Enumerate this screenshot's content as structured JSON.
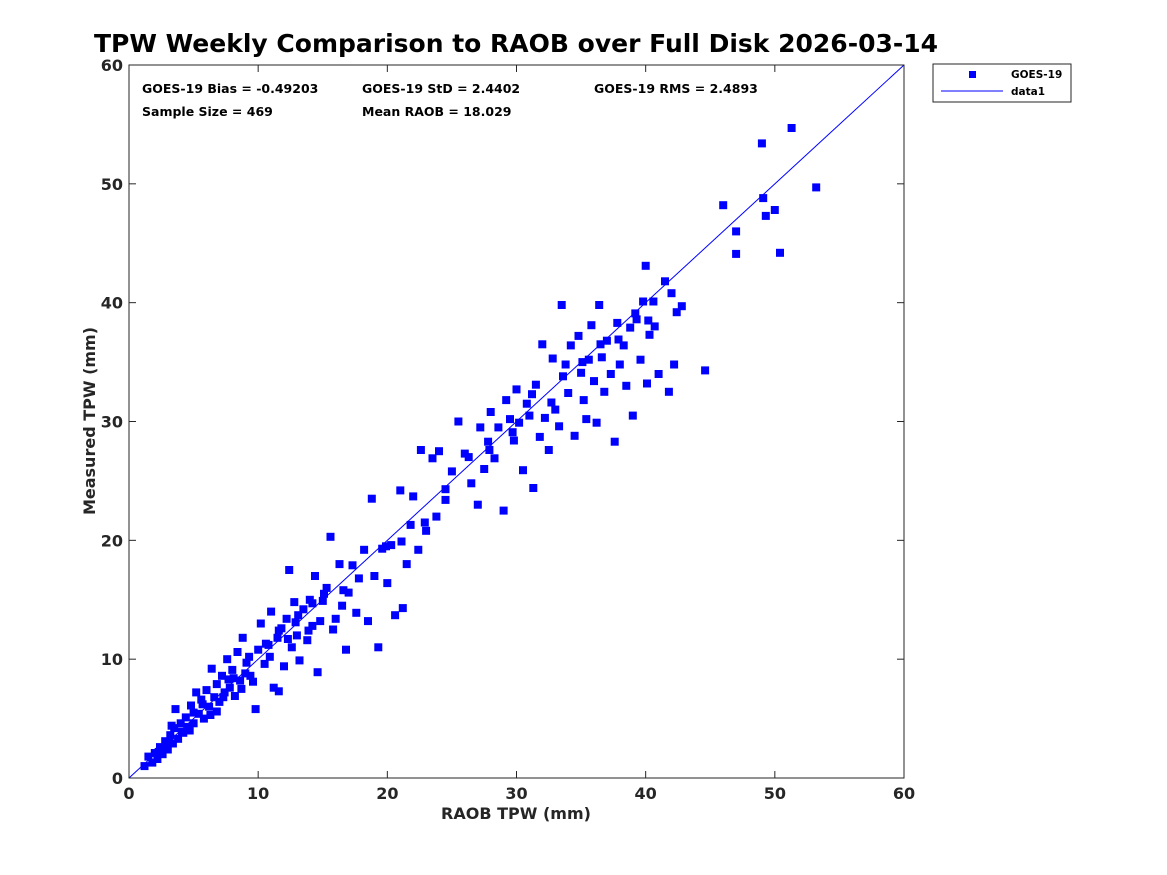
{
  "chart_data": {
    "type": "scatter",
    "title": "TPW Weekly Comparison to RAOB over Full Disk 2026-03-14",
    "xlabel": "RAOB TPW (mm)",
    "ylabel": "Measured TPW (mm)",
    "xlim": [
      0,
      60
    ],
    "ylim": [
      0,
      60
    ],
    "xticks": [
      0,
      10,
      20,
      30,
      40,
      50,
      60
    ],
    "yticks": [
      0,
      10,
      20,
      30,
      40,
      50,
      60
    ],
    "grid": false,
    "legend_position": "outside-top-right",
    "stats": [
      {
        "label": "GOES-19 Bias = -0.49203"
      },
      {
        "label": "GOES-19 StD = 2.4402"
      },
      {
        "label": "GOES-19 RMS = 2.4893"
      },
      {
        "label": "Sample Size = 469"
      },
      {
        "label": "Mean RAOB = 18.029"
      }
    ],
    "series": [
      {
        "name": "GOES-19",
        "marker": "square",
        "color": "#0000ff",
        "points": [
          [
            1.2,
            1.0
          ],
          [
            1.5,
            1.8
          ],
          [
            1.8,
            1.3
          ],
          [
            2.0,
            2.1
          ],
          [
            2.2,
            1.6
          ],
          [
            2.4,
            2.6
          ],
          [
            2.6,
            2.0
          ],
          [
            2.8,
            3.1
          ],
          [
            3.0,
            2.4
          ],
          [
            3.2,
            3.6
          ],
          [
            3.4,
            2.9
          ],
          [
            3.5,
            4.2
          ],
          [
            3.6,
            5.8
          ],
          [
            3.8,
            3.3
          ],
          [
            4.0,
            4.6
          ],
          [
            4.2,
            3.8
          ],
          [
            4.4,
            5.1
          ],
          [
            4.6,
            4.3
          ],
          [
            4.8,
            6.1
          ],
          [
            5.0,
            4.6
          ],
          [
            5.2,
            7.2
          ],
          [
            5.4,
            5.4
          ],
          [
            5.6,
            6.6
          ],
          [
            5.8,
            5.0
          ],
          [
            6.0,
            7.4
          ],
          [
            6.2,
            6.0
          ],
          [
            6.4,
            9.2
          ],
          [
            6.6,
            6.8
          ],
          [
            6.8,
            7.9
          ],
          [
            7.0,
            6.4
          ],
          [
            7.2,
            8.6
          ],
          [
            7.4,
            7.2
          ],
          [
            7.6,
            10.0
          ],
          [
            7.8,
            7.6
          ],
          [
            8.0,
            9.1
          ],
          [
            8.2,
            6.9
          ],
          [
            8.4,
            10.6
          ],
          [
            8.6,
            8.2
          ],
          [
            8.8,
            11.8
          ],
          [
            9.0,
            8.8
          ],
          [
            9.3,
            10.2
          ],
          [
            9.6,
            8.1
          ],
          [
            9.8,
            5.8
          ],
          [
            10.0,
            10.8
          ],
          [
            10.2,
            13.0
          ],
          [
            10.5,
            9.6
          ],
          [
            10.8,
            11.2
          ],
          [
            11.0,
            14.0
          ],
          [
            11.2,
            7.6
          ],
          [
            11.5,
            11.8
          ],
          [
            11.6,
            7.3
          ],
          [
            11.8,
            12.6
          ],
          [
            12.0,
            9.4
          ],
          [
            12.2,
            13.4
          ],
          [
            12.4,
            17.5
          ],
          [
            12.6,
            11.0
          ],
          [
            12.8,
            14.8
          ],
          [
            13.0,
            12.0
          ],
          [
            13.2,
            9.9
          ],
          [
            13.5,
            14.2
          ],
          [
            13.8,
            11.6
          ],
          [
            14.0,
            15.0
          ],
          [
            14.2,
            12.8
          ],
          [
            14.4,
            17.0
          ],
          [
            14.6,
            8.9
          ],
          [
            14.8,
            13.2
          ],
          [
            15.0,
            14.9
          ],
          [
            15.3,
            16.0
          ],
          [
            15.6,
            20.3
          ],
          [
            15.8,
            12.5
          ],
          [
            16.0,
            13.4
          ],
          [
            16.3,
            18.0
          ],
          [
            16.5,
            14.5
          ],
          [
            16.8,
            10.8
          ],
          [
            17.0,
            15.6
          ],
          [
            17.3,
            17.9
          ],
          [
            17.6,
            13.9
          ],
          [
            17.8,
            16.8
          ],
          [
            18.2,
            19.2
          ],
          [
            18.5,
            13.2
          ],
          [
            18.8,
            23.5
          ],
          [
            19.0,
            17.0
          ],
          [
            19.3,
            11.0
          ],
          [
            19.6,
            19.3
          ],
          [
            20.0,
            16.4
          ],
          [
            20.3,
            19.6
          ],
          [
            20.6,
            13.7
          ],
          [
            21.0,
            24.2
          ],
          [
            21.2,
            14.3
          ],
          [
            21.5,
            18.0
          ],
          [
            21.8,
            21.3
          ],
          [
            22.0,
            23.7
          ],
          [
            22.4,
            19.2
          ],
          [
            22.6,
            27.6
          ],
          [
            23.0,
            20.8
          ],
          [
            23.5,
            26.9
          ],
          [
            23.8,
            22.0
          ],
          [
            24.0,
            27.5
          ],
          [
            24.5,
            24.3
          ],
          [
            25.0,
            25.8
          ],
          [
            25.5,
            30.0
          ],
          [
            26.0,
            27.3
          ],
          [
            26.5,
            24.8
          ],
          [
            27.0,
            23.0
          ],
          [
            27.2,
            29.5
          ],
          [
            27.5,
            26.0
          ],
          [
            27.8,
            28.3
          ],
          [
            28.0,
            30.8
          ],
          [
            28.3,
            26.9
          ],
          [
            28.6,
            29.5
          ],
          [
            29.0,
            22.5
          ],
          [
            29.2,
            31.8
          ],
          [
            29.5,
            30.2
          ],
          [
            29.8,
            28.4
          ],
          [
            30.0,
            32.7
          ],
          [
            30.2,
            29.9
          ],
          [
            30.5,
            25.9
          ],
          [
            30.8,
            31.5
          ],
          [
            31.0,
            30.5
          ],
          [
            31.3,
            24.4
          ],
          [
            31.5,
            33.1
          ],
          [
            31.8,
            28.7
          ],
          [
            32.0,
            36.5
          ],
          [
            32.2,
            30.3
          ],
          [
            32.5,
            27.6
          ],
          [
            32.8,
            35.3
          ],
          [
            33.0,
            31.0
          ],
          [
            33.3,
            29.6
          ],
          [
            33.5,
            39.8
          ],
          [
            33.8,
            34.8
          ],
          [
            34.0,
            32.4
          ],
          [
            34.2,
            36.4
          ],
          [
            34.5,
            28.8
          ],
          [
            34.8,
            37.2
          ],
          [
            35.0,
            34.1
          ],
          [
            35.2,
            31.8
          ],
          [
            35.4,
            30.2
          ],
          [
            35.6,
            35.2
          ],
          [
            35.8,
            38.1
          ],
          [
            36.0,
            33.4
          ],
          [
            36.2,
            29.9
          ],
          [
            36.4,
            39.8
          ],
          [
            36.6,
            35.4
          ],
          [
            36.8,
            32.5
          ],
          [
            37.0,
            36.8
          ],
          [
            37.3,
            34.0
          ],
          [
            37.6,
            28.3
          ],
          [
            37.8,
            38.3
          ],
          [
            38.0,
            34.8
          ],
          [
            38.3,
            36.4
          ],
          [
            38.5,
            33.0
          ],
          [
            38.8,
            37.9
          ],
          [
            39.0,
            30.5
          ],
          [
            39.3,
            38.6
          ],
          [
            39.6,
            35.2
          ],
          [
            39.8,
            40.1
          ],
          [
            40.0,
            43.1
          ],
          [
            40.1,
            33.2
          ],
          [
            40.2,
            38.5
          ],
          [
            40.3,
            37.3
          ],
          [
            40.6,
            40.1
          ],
          [
            41.0,
            34.0
          ],
          [
            41.5,
            41.8
          ],
          [
            41.8,
            32.5
          ],
          [
            42.0,
            40.8
          ],
          [
            42.2,
            34.8
          ],
          [
            42.4,
            39.2
          ],
          [
            42.8,
            39.7
          ],
          [
            44.6,
            34.3
          ],
          [
            46.0,
            48.2
          ],
          [
            47.0,
            44.1
          ],
          [
            47.0,
            46.0
          ],
          [
            49.0,
            53.4
          ],
          [
            49.1,
            48.8
          ],
          [
            49.3,
            47.3
          ],
          [
            50.0,
            47.8
          ],
          [
            50.4,
            44.2
          ],
          [
            51.3,
            54.7
          ],
          [
            53.2,
            49.7
          ],
          [
            5.0,
            5.5
          ],
          [
            4.1,
            3.9
          ],
          [
            3.1,
            3.0
          ],
          [
            2.3,
            2.2
          ],
          [
            6.8,
            5.6
          ],
          [
            7.3,
            6.8
          ],
          [
            8.1,
            8.4
          ],
          [
            9.1,
            9.7
          ],
          [
            10.6,
            11.3
          ],
          [
            11.6,
            12.4
          ],
          [
            12.9,
            13.1
          ],
          [
            14.2,
            14.7
          ],
          [
            15.1,
            15.5
          ],
          [
            16.6,
            15.8
          ],
          [
            19.9,
            19.5
          ],
          [
            21.1,
            19.9
          ],
          [
            22.9,
            21.5
          ],
          [
            24.5,
            23.4
          ],
          [
            26.3,
            27.0
          ],
          [
            27.9,
            27.6
          ],
          [
            29.7,
            29.1
          ],
          [
            31.2,
            32.3
          ],
          [
            32.7,
            31.6
          ],
          [
            33.6,
            33.8
          ],
          [
            35.1,
            35.0
          ],
          [
            36.5,
            36.5
          ],
          [
            37.9,
            36.9
          ],
          [
            39.2,
            39.1
          ],
          [
            40.7,
            38.0
          ],
          [
            4.7,
            4.0
          ],
          [
            5.7,
            6.2
          ],
          [
            6.3,
            5.3
          ],
          [
            7.7,
            8.3
          ],
          [
            8.7,
            7.5
          ],
          [
            9.4,
            8.6
          ],
          [
            10.9,
            10.2
          ],
          [
            12.3,
            11.7
          ],
          [
            13.1,
            13.7
          ],
          [
            13.9,
            12.4
          ],
          [
            3.3,
            4.4
          ],
          [
            2.7,
            2.5
          ]
        ]
      },
      {
        "name": "data1",
        "style": "line",
        "color": "#0000ff",
        "points": [
          [
            0,
            0
          ],
          [
            60,
            60
          ]
        ]
      }
    ]
  }
}
